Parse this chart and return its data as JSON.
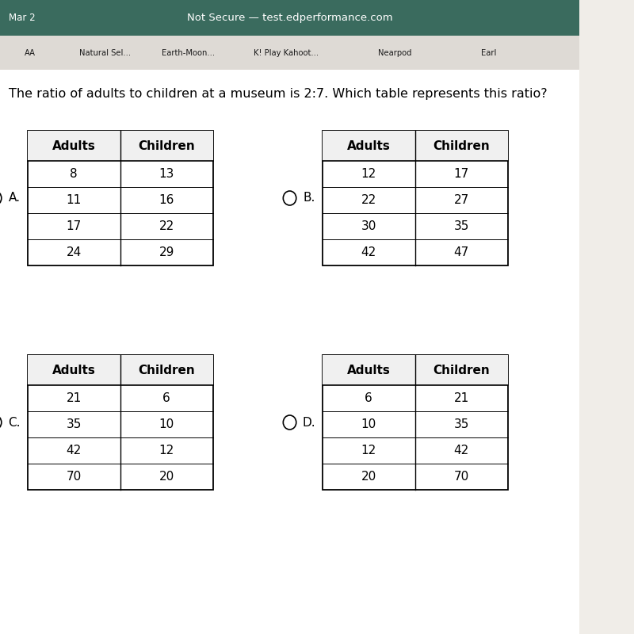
{
  "title": "The ratio of adults to children at a museum is 2:7. Which table represents this ratio?",
  "title_fontsize": 11.5,
  "bg_color": "#f0ede8",
  "content_bg": "#ffffff",
  "browser_bar_color": "#3a6b5e",
  "browser_text": "Not Secure — test.edperformance.com",
  "browser_date": "Mar 2",
  "tab_bar_color": "#dedad5",
  "table_A": {
    "label": "A.",
    "headers": [
      "Adults",
      "Children"
    ],
    "rows": [
      [
        "8",
        "13"
      ],
      [
        "11",
        "16"
      ],
      [
        "17",
        "22"
      ],
      [
        "24",
        "29"
      ]
    ]
  },
  "table_B": {
    "label": "B.",
    "headers": [
      "Adults",
      "Children"
    ],
    "rows": [
      [
        "12",
        "17"
      ],
      [
        "22",
        "27"
      ],
      [
        "30",
        "35"
      ],
      [
        "42",
        "47"
      ]
    ]
  },
  "table_C": {
    "label": "C.",
    "headers": [
      "Adults",
      "Children"
    ],
    "rows": [
      [
        "21",
        "6"
      ],
      [
        "35",
        "10"
      ],
      [
        "42",
        "12"
      ],
      [
        "70",
        "20"
      ]
    ]
  },
  "table_D": {
    "label": "D.",
    "headers": [
      "Adults",
      "Children"
    ],
    "rows": [
      [
        "6",
        "21"
      ],
      [
        "10",
        "35"
      ],
      [
        "12",
        "42"
      ],
      [
        "20",
        "70"
      ]
    ]
  },
  "header_fontsize": 11,
  "cell_fontsize": 11,
  "label_fontsize": 11,
  "tab_labels": [
    "AA",
    "Natural Sel...",
    "Earth-Moon...",
    "K! Play Kahoot...",
    "Nearpod",
    "Earl"
  ],
  "tab_x_positions": [
    0.42,
    1.45,
    2.6,
    3.95,
    5.45,
    6.75
  ]
}
